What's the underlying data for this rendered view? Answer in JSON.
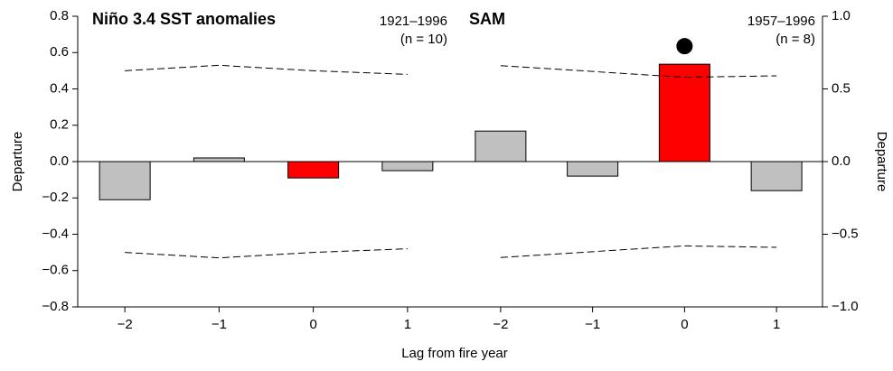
{
  "chart_data": [
    {
      "type": "bar",
      "title": "Niño 3.4 SST anomalies",
      "period": "1921–1996",
      "sample": "(n = 10)",
      "ylabel": "Departure",
      "axis_side": "left",
      "categories": [
        "−2",
        "−1",
        "0",
        "1"
      ],
      "values": [
        -0.21,
        0.02,
        -0.09,
        -0.05
      ],
      "colors": [
        "#c0c0c0",
        "#c0c0c0",
        "#ff0000",
        "#c0c0c0"
      ],
      "upper_bound": [
        0.5,
        0.53,
        0.5,
        0.48
      ],
      "lower_bound": [
        -0.5,
        -0.53,
        -0.5,
        -0.48
      ],
      "significant": [
        false,
        false,
        false,
        false
      ],
      "ylim": [
        -0.8,
        0.8
      ],
      "yticks": [
        {
          "value": -0.8,
          "label": "−0.8"
        },
        {
          "value": -0.6,
          "label": "−0.6"
        },
        {
          "value": -0.4,
          "label": "−0.4"
        },
        {
          "value": -0.2,
          "label": "−0.2"
        },
        {
          "value": 0,
          "label": "0.0"
        },
        0.2,
        0.4,
        0.6,
        0.8
      ]
    },
    {
      "type": "bar",
      "title": "SAM",
      "period": "1957–1996",
      "sample": "(n = 8)",
      "ylabel": "Departure",
      "axis_side": "right",
      "categories": [
        "−2",
        "−1",
        "0",
        "1"
      ],
      "values": [
        0.21,
        -0.1,
        0.67,
        -0.2
      ],
      "colors": [
        "#c0c0c0",
        "#c0c0c0",
        "#ff0000",
        "#c0c0c0"
      ],
      "upper_bound": [
        0.66,
        0.62,
        0.58,
        0.59
      ],
      "lower_bound": [
        -0.66,
        -0.62,
        -0.58,
        -0.59
      ],
      "significant": [
        false,
        false,
        true,
        false
      ],
      "ylim": [
        -1.0,
        1.0
      ],
      "yticks": [
        {
          "value": -1.0,
          "label": "−1.0"
        },
        {
          "value": -0.5,
          "label": "−0.5"
        },
        {
          "value": 0,
          "label": "0.0"
        },
        0.5,
        {
          "value": 1.0,
          "label": "1.0"
        }
      ]
    }
  ],
  "xlabel": "Lag from fire year"
}
